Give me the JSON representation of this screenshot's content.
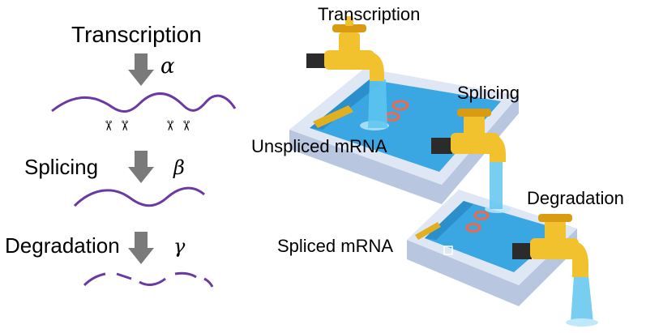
{
  "left_panel": {
    "transcription_label": "Transcription",
    "transcription_rate": "α",
    "splicing_label": "Splicing",
    "splicing_rate": "β",
    "degradation_label": "Degradation",
    "degradation_rate": "γ",
    "scissor_glyph": "✂"
  },
  "right_panel": {
    "transcription_label": "Transcription",
    "splicing_label": "Splicing",
    "degradation_label": "Degradation",
    "unspliced_label": "Unspliced mRNA",
    "spliced_label": "Spliced mRNA"
  },
  "colors": {
    "mrna": "#6a3aa2",
    "arrow": "#7a7a7a",
    "tap": "#f2c12e",
    "tap_dark": "#d99b12",
    "handle": "#2b2b2b",
    "water": "#5fc6ee",
    "water_light": "#bfe9fa",
    "tub_rim": "#dfe6f4",
    "tub_side": "#b9c6df",
    "tub_inner": "#3aa7e3",
    "ring": "#f06a4a"
  }
}
